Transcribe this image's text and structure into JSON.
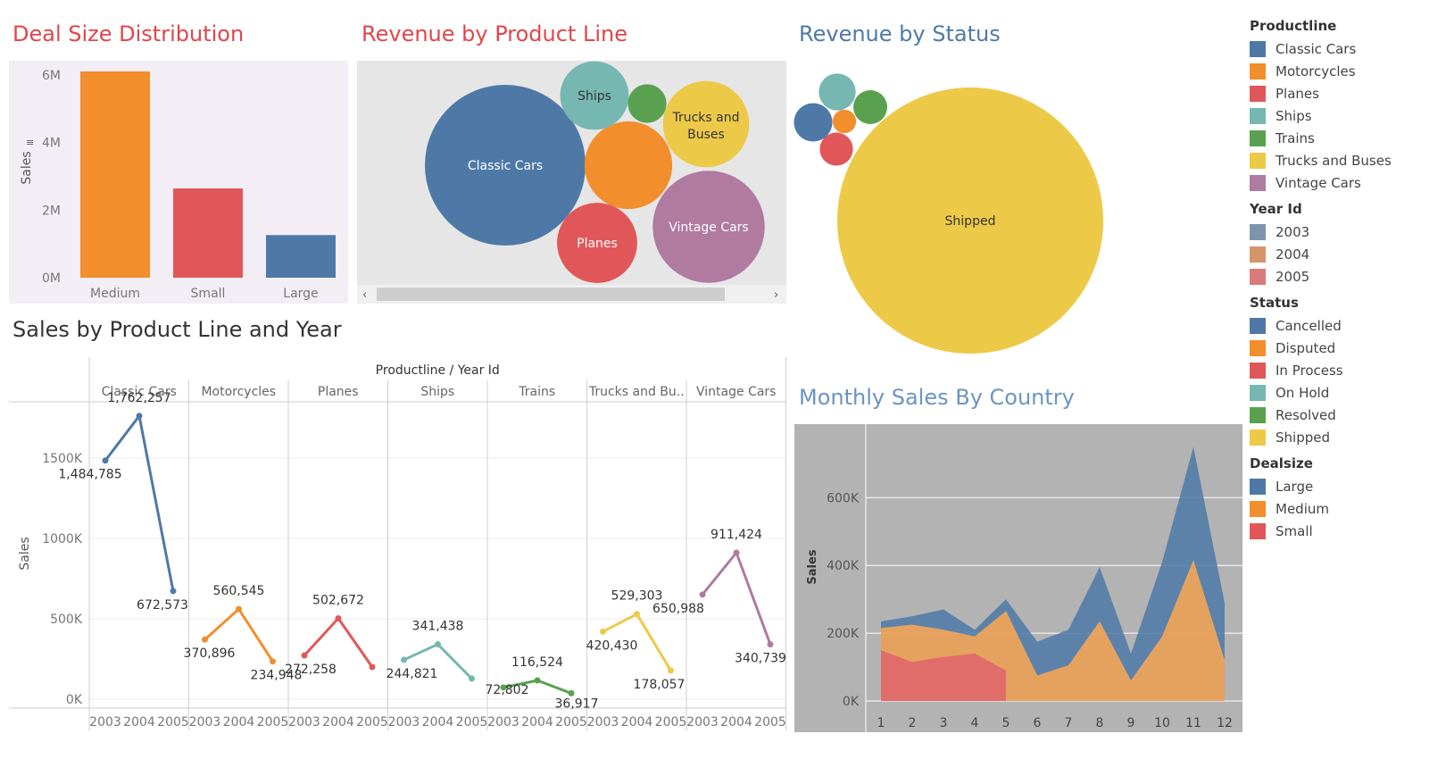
{
  "titles": {
    "deal": "Deal Size Distribution",
    "revenue_product": "Revenue by Product Line",
    "revenue_status": "Revenue by Status",
    "sales_line_year": "Sales by Product Line and Year",
    "monthly_country": "Monthly Sales By Country"
  },
  "colors": {
    "title_red": "#e0464b",
    "title_blue": "#4e79a7",
    "title_lightblue": "#6b95c2",
    "title_dark": "#333333"
  },
  "legend": {
    "productline": {
      "title": "Productline",
      "items": [
        {
          "label": "Classic Cars",
          "color": "#4e79a7"
        },
        {
          "label": "Motorcycles",
          "color": "#f28e2b"
        },
        {
          "label": "Planes",
          "color": "#e15759"
        },
        {
          "label": "Ships",
          "color": "#76b7b2"
        },
        {
          "label": "Trains",
          "color": "#59a14f"
        },
        {
          "label": "Trucks and Buses",
          "color": "#edc948"
        },
        {
          "label": "Vintage Cars",
          "color": "#b07aa1"
        }
      ]
    },
    "year": {
      "title": "Year Id",
      "items": [
        {
          "label": "2003",
          "color": "#7e93ad"
        },
        {
          "label": "2004",
          "color": "#d4956a"
        },
        {
          "label": "2005",
          "color": "#d97a7b"
        }
      ]
    },
    "status": {
      "title": "Status",
      "items": [
        {
          "label": "Cancelled",
          "color": "#4e79a7"
        },
        {
          "label": "Disputed",
          "color": "#f28e2b"
        },
        {
          "label": "In Process",
          "color": "#e15759"
        },
        {
          "label": "On Hold",
          "color": "#76b7b2"
        },
        {
          "label": "Resolved",
          "color": "#59a14f"
        },
        {
          "label": "Shipped",
          "color": "#edc948"
        }
      ]
    },
    "dealsize": {
      "title": "Dealsize",
      "items": [
        {
          "label": "Large",
          "color": "#4e79a7"
        },
        {
          "label": "Medium",
          "color": "#f28e2b"
        },
        {
          "label": "Small",
          "color": "#e15759"
        }
      ]
    }
  },
  "chart_data": [
    {
      "id": "deal",
      "type": "bar",
      "title": "Deal Size Distribution",
      "categories": [
        "Medium",
        "Small",
        "Large"
      ],
      "values": [
        6100000,
        2640000,
        1260000
      ],
      "colors": [
        "#f28e2b",
        "#e15759",
        "#4e79a7"
      ],
      "ylabel": "Sales",
      "yticks": [
        "0M",
        "2M",
        "4M",
        "6M"
      ],
      "tick_values": [
        0,
        2000000,
        4000000,
        6000000
      ],
      "ylim": [
        0,
        6100000
      ]
    },
    {
      "id": "bubbles_product",
      "type": "bubble",
      "title": "Revenue by Product Line",
      "items": [
        {
          "label": "Classic Cars",
          "value": 3919615,
          "color": "#4e79a7"
        },
        {
          "label": "Vintage Cars",
          "value": 1903151,
          "color": "#b07aa1"
        },
        {
          "label": "Motorcycles",
          "value": 1166389,
          "color": "#f28e2b",
          "show_label": false
        },
        {
          "label": "Trucks and Buses",
          "value": 1127790,
          "color": "#edc948"
        },
        {
          "label": "Planes",
          "value": 975004,
          "color": "#e15759"
        },
        {
          "label": "Ships",
          "value": 714437,
          "color": "#76b7b2"
        },
        {
          "label": "Trains",
          "value": 226243,
          "color": "#59a14f",
          "show_label": false
        }
      ]
    },
    {
      "id": "bubbles_status",
      "type": "bubble",
      "title": "Revenue by Status",
      "items": [
        {
          "label": "Shipped",
          "value": 9291501,
          "color": "#edc948"
        },
        {
          "label": "On Hold",
          "value": 178979,
          "color": "#76b7b2",
          "show_label": false
        },
        {
          "label": "Cancelled",
          "value": 194487,
          "color": "#4e79a7",
          "show_label": false
        },
        {
          "label": "Resolved",
          "value": 150718,
          "color": "#59a14f",
          "show_label": false
        },
        {
          "label": "In Process",
          "value": 144730,
          "color": "#e15759",
          "show_label": false
        },
        {
          "label": "Disputed",
          "value": 72212,
          "color": "#f28e2b",
          "show_label": false
        }
      ]
    },
    {
      "id": "line_panels",
      "type": "line",
      "title": "Sales by Product Line and Year",
      "header": "Productline  /  Year Id",
      "ylabel": "Sales",
      "yticks": [
        "0K",
        "500K",
        "1000K",
        "1500K"
      ],
      "tick_values": [
        0,
        500000,
        1000000,
        1500000
      ],
      "years": [
        "2003",
        "2004",
        "2005"
      ],
      "panels": [
        {
          "name": "Classic Cars",
          "color": "#4e79a7",
          "values": [
            1484785,
            1762257,
            672573
          ],
          "labels": [
            "1,484,785",
            "1,762,257",
            "672,573"
          ]
        },
        {
          "name": "Motorcycles",
          "color": "#f28e2b",
          "values": [
            370896,
            560545,
            234948
          ],
          "labels": [
            "370,896",
            "560,545",
            "234,948"
          ]
        },
        {
          "name": "Planes",
          "color": "#e15759",
          "values": [
            272258,
            502672,
            200074
          ],
          "labels": [
            "272,258",
            "502,672",
            ""
          ]
        },
        {
          "name": "Ships",
          "color": "#76b7b2",
          "values": [
            244821,
            341438,
            128178
          ],
          "labels": [
            "244,821",
            "341,438",
            ""
          ]
        },
        {
          "name": "Trains",
          "color": "#59a14f",
          "values": [
            72802,
            116524,
            36917
          ],
          "labels": [
            "72,802",
            "116,524",
            "36,917"
          ]
        },
        {
          "name": "Trucks and Bu..",
          "color": "#edc948",
          "values": [
            420430,
            529303,
            178057
          ],
          "labels": [
            "420,430",
            "529,303",
            "178,057"
          ]
        },
        {
          "name": "Vintage Cars",
          "color": "#b07aa1",
          "values": [
            650988,
            911424,
            340739
          ],
          "labels": [
            "650,988",
            "911,424",
            "340,739"
          ]
        }
      ]
    },
    {
      "id": "area_monthly",
      "type": "area",
      "title": "Monthly Sales By Country",
      "ylabel": "Sales",
      "x": [
        1,
        2,
        3,
        4,
        5,
        6,
        7,
        8,
        9,
        10,
        11,
        12
      ],
      "yticks": [
        "0K",
        "200K",
        "400K",
        "600K"
      ],
      "tick_values": [
        0,
        200000,
        400000,
        600000
      ],
      "ylim": [
        0,
        780000
      ],
      "series": [
        {
          "name": "Large",
          "color": "#4e79a7",
          "values": [
            235000,
            250000,
            270000,
            210000,
            300000,
            175000,
            210000,
            395000,
            140000,
            410000,
            750000,
            290000
          ],
          "bottom": [
            215000,
            225000,
            210000,
            190000,
            265000,
            75000,
            105000,
            235000,
            60000,
            190000,
            415000,
            120000
          ]
        },
        {
          "name": "Medium",
          "color": "#e8a15a",
          "values": [
            215000,
            225000,
            210000,
            190000,
            265000,
            75000,
            105000,
            235000,
            60000,
            190000,
            415000,
            120000
          ]
        },
        {
          "name": "Small",
          "color": "#e06a6a",
          "x": [
            1,
            2,
            3,
            4,
            5
          ],
          "values": [
            150000,
            115000,
            130000,
            140000,
            90000
          ]
        }
      ]
    }
  ]
}
